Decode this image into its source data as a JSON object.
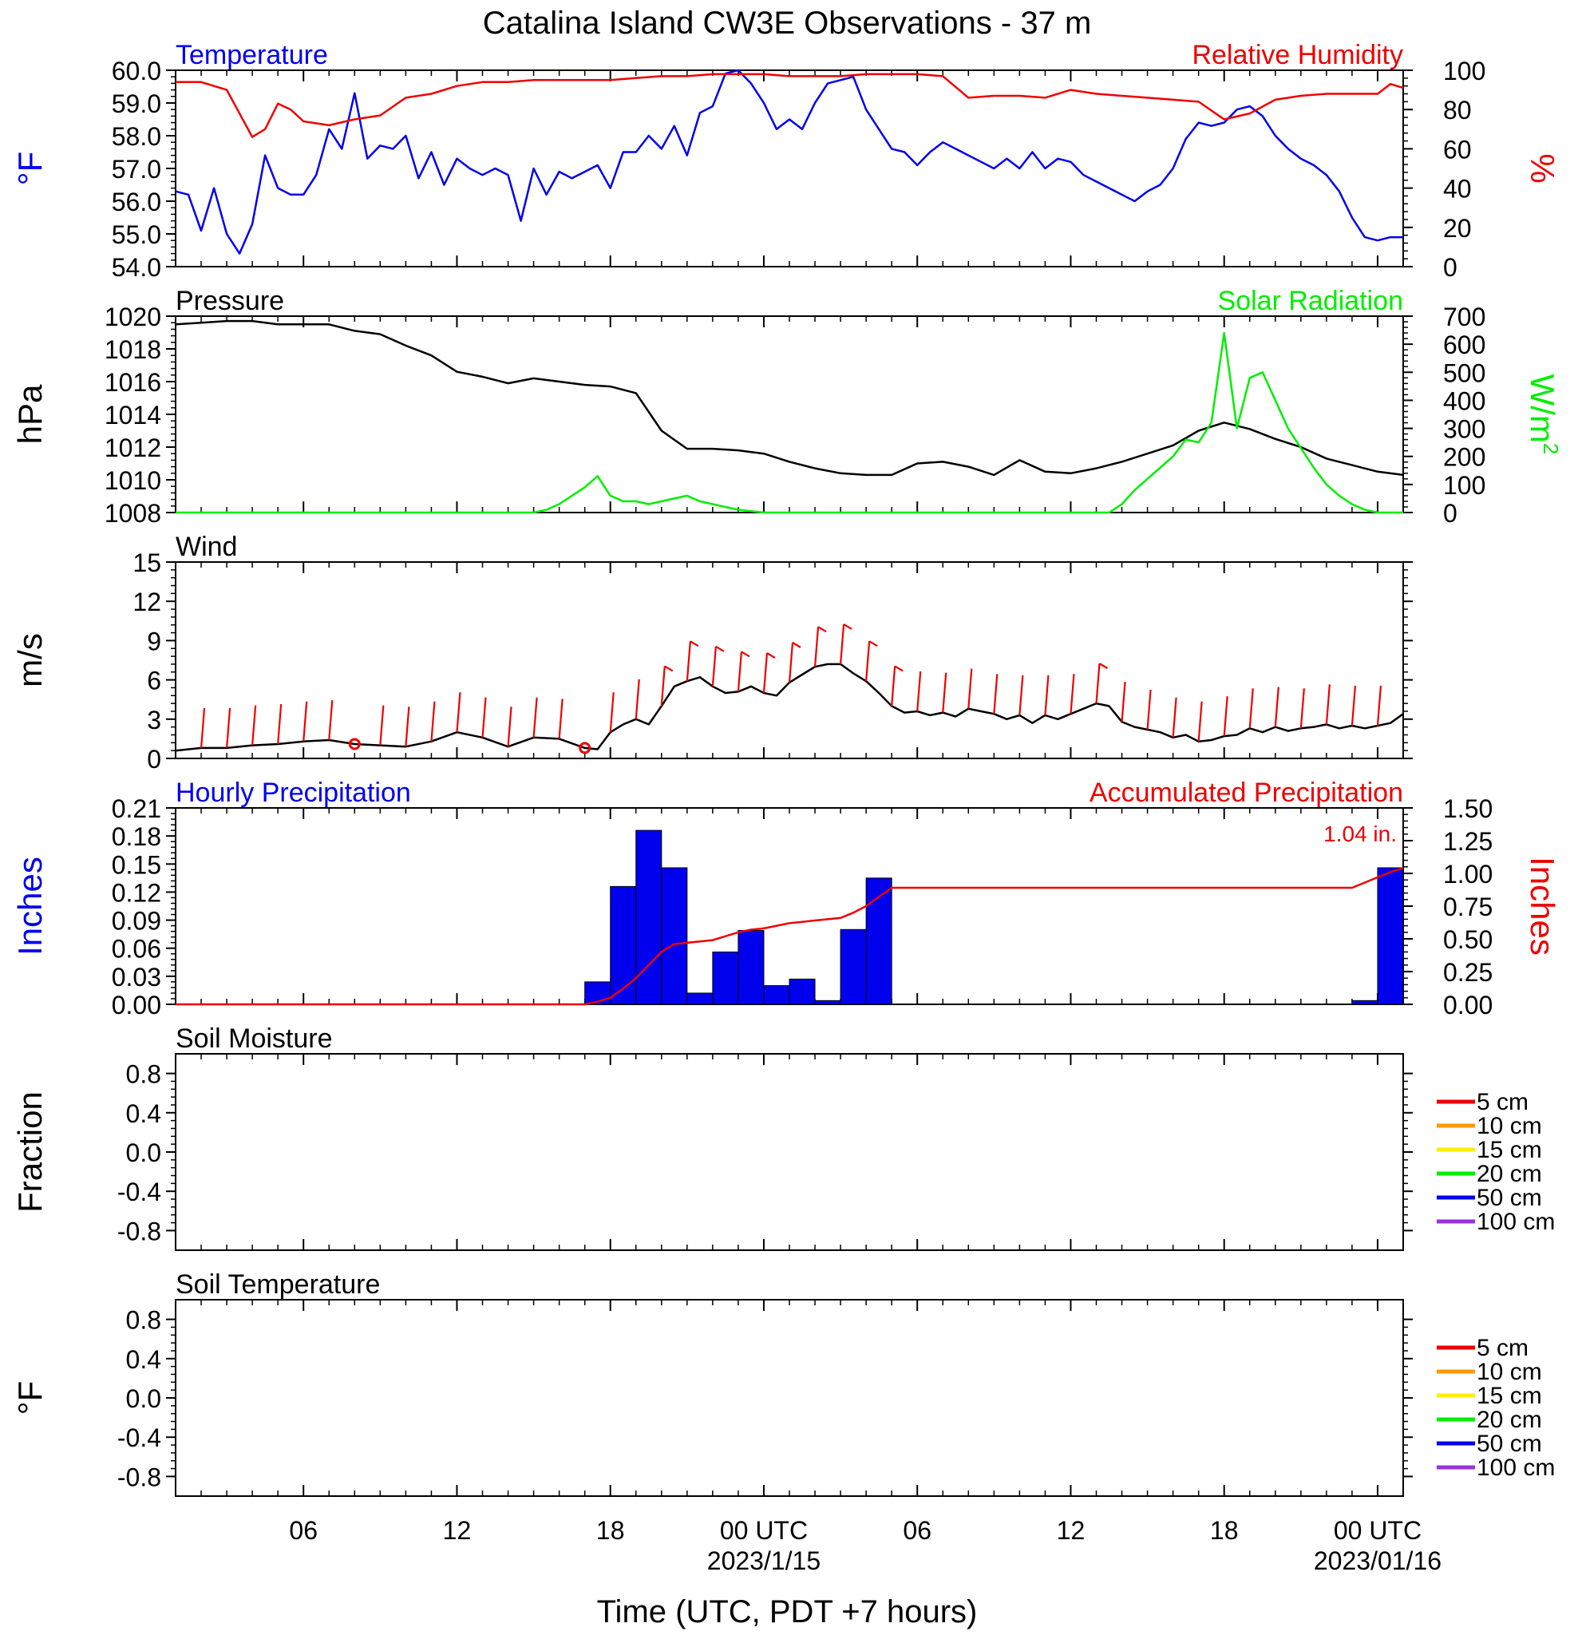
{
  "page": {
    "title": "Catalina Island CW3E Observations - 37 m",
    "xlabel": "Time (UTC, PDT +7 hours)",
    "x_ticks": [
      {
        "hour": 6,
        "label": "06",
        "date": ""
      },
      {
        "hour": 12,
        "label": "12",
        "date": ""
      },
      {
        "hour": 18,
        "label": "18",
        "date": ""
      },
      {
        "hour": 24,
        "label": "00 UTC",
        "date": "2023/1/15"
      },
      {
        "hour": 30,
        "label": "06",
        "date": ""
      },
      {
        "hour": 36,
        "label": "12",
        "date": ""
      },
      {
        "hour": 42,
        "label": "18",
        "date": ""
      },
      {
        "hour": 48,
        "label": "00 UTC",
        "date": "2023/01/16"
      }
    ],
    "x_range_hours": [
      1,
      49
    ]
  },
  "chart_data": [
    {
      "id": "temp_rh",
      "type": "line",
      "title_left": "Temperature",
      "title_right": "Relative Humidity",
      "ylabel_left": "°F",
      "ylabel_right": "%",
      "ylim_left": [
        54.0,
        60.0
      ],
      "yticks_left": [
        "54.0",
        "55.0",
        "56.0",
        "57.0",
        "58.0",
        "59.0",
        "60.0"
      ],
      "ylim_right": [
        0,
        100
      ],
      "yticks_right": [
        "0",
        "20",
        "40",
        "60",
        "80",
        "100"
      ],
      "series": [
        {
          "name": "Temperature",
          "axis": "left",
          "color": "#0000ee",
          "x": [
            1,
            1.5,
            2,
            2.5,
            3,
            3.5,
            4,
            4.5,
            5,
            5.5,
            6,
            6.5,
            7,
            7.5,
            8,
            8.5,
            9,
            9.5,
            10,
            10.5,
            11,
            11.5,
            12,
            12.5,
            13,
            13.5,
            14,
            14.5,
            15,
            15.5,
            16,
            16.5,
            17,
            17.5,
            18,
            18.5,
            19,
            19.5,
            20,
            20.5,
            21,
            21.5,
            22,
            22.5,
            23,
            23.5,
            24,
            24.5,
            25,
            25.5,
            26,
            26.5,
            27,
            27.5,
            28,
            28.5,
            29,
            29.5,
            30,
            30.5,
            31,
            31.5,
            32,
            32.5,
            33,
            33.5,
            34,
            34.5,
            35,
            35.5,
            36,
            36.5,
            37,
            37.5,
            38,
            38.5,
            39,
            39.5,
            40,
            40.5,
            41,
            41.5,
            42,
            42.5,
            43,
            43.5,
            44,
            44.5,
            45,
            45.5,
            46,
            46.5,
            47,
            47.5,
            48,
            48.5,
            49
          ],
          "values": [
            56.3,
            56.2,
            55.1,
            56.4,
            55.0,
            54.4,
            55.3,
            57.4,
            56.4,
            56.2,
            56.2,
            56.8,
            58.2,
            57.6,
            59.3,
            57.3,
            57.7,
            57.6,
            58.0,
            56.7,
            57.5,
            56.5,
            57.3,
            57.0,
            56.8,
            57.0,
            56.8,
            55.4,
            57.0,
            56.2,
            56.9,
            56.7,
            56.9,
            57.1,
            56.4,
            57.5,
            57.5,
            58.0,
            57.6,
            58.3,
            57.4,
            58.7,
            58.9,
            59.9,
            60.0,
            59.6,
            59.0,
            58.2,
            58.5,
            58.2,
            59.0,
            59.6,
            59.7,
            59.8,
            58.8,
            58.2,
            57.6,
            57.5,
            57.1,
            57.5,
            57.8,
            57.6,
            57.4,
            57.2,
            57.0,
            57.3,
            57.0,
            57.5,
            57.0,
            57.3,
            57.2,
            56.8,
            56.6,
            56.4,
            56.2,
            56.0,
            56.3,
            56.5,
            57.0,
            57.9,
            58.4,
            58.3,
            58.4,
            58.8,
            58.9,
            58.6,
            58.0,
            57.6,
            57.3,
            57.1,
            56.8,
            56.3,
            55.5,
            54.9,
            54.8,
            54.9,
            54.9
          ]
        },
        {
          "name": "Relative Humidity",
          "axis": "right",
          "color": "#ee0000",
          "x": [
            1,
            2,
            3,
            4,
            4.5,
            5,
            5.5,
            6,
            7,
            8,
            9,
            10,
            11,
            12,
            13,
            14,
            15,
            16,
            17,
            18,
            19,
            20,
            21,
            22,
            23,
            24,
            25,
            26,
            27,
            28,
            29,
            30,
            31,
            32,
            33,
            34,
            35,
            36,
            37,
            38,
            39,
            40,
            41,
            42,
            43,
            44,
            45,
            46,
            47,
            48,
            48.5,
            49
          ],
          "values": [
            94,
            94,
            90,
            66,
            70,
            83,
            80,
            74,
            72,
            75,
            77,
            86,
            88,
            92,
            94,
            94,
            95,
            95,
            95,
            95,
            96,
            97,
            97,
            98,
            98,
            98,
            97,
            97,
            97,
            98,
            98,
            98,
            97,
            86,
            87,
            87,
            86,
            90,
            88,
            87,
            86,
            85,
            84,
            75,
            78,
            85,
            87,
            88,
            88,
            88,
            93,
            91
          ]
        }
      ]
    },
    {
      "id": "pressure_solar",
      "type": "line",
      "title_left": "Pressure",
      "title_right": "Solar Radiation",
      "ylabel_left": "hPa",
      "ylabel_right": "W/m",
      "ylabel_right_sup": "2",
      "ylim_left": [
        1008,
        1020
      ],
      "yticks_left": [
        "1008",
        "1010",
        "1012",
        "1014",
        "1016",
        "1018",
        "1020"
      ],
      "ylim_right": [
        0,
        700
      ],
      "yticks_right": [
        "0",
        "100",
        "200",
        "300",
        "400",
        "500",
        "600",
        "700"
      ],
      "series": [
        {
          "name": "Pressure",
          "axis": "left",
          "color": "#000000",
          "x": [
            1,
            2,
            3,
            4,
            5,
            6,
            7,
            8,
            9,
            10,
            11,
            12,
            13,
            14,
            15,
            16,
            17,
            18,
            19,
            20,
            21,
            22,
            23,
            24,
            25,
            26,
            27,
            28,
            29,
            30,
            31,
            32,
            33,
            34,
            35,
            36,
            37,
            38,
            39,
            40,
            41,
            42,
            43,
            44,
            45,
            46,
            47,
            48,
            49
          ],
          "values": [
            1019.5,
            1019.6,
            1019.7,
            1019.7,
            1019.5,
            1019.5,
            1019.5,
            1019.1,
            1018.9,
            1018.2,
            1017.6,
            1016.6,
            1016.3,
            1015.9,
            1016.2,
            1016.0,
            1015.8,
            1015.7,
            1015.3,
            1013.0,
            1011.9,
            1011.9,
            1011.8,
            1011.6,
            1011.1,
            1010.7,
            1010.4,
            1010.3,
            1010.3,
            1011.0,
            1011.1,
            1010.8,
            1010.3,
            1011.2,
            1010.5,
            1010.4,
            1010.7,
            1011.1,
            1011.6,
            1012.1,
            1013.0,
            1013.5,
            1013.1,
            1012.5,
            1012.0,
            1011.3,
            1010.9,
            1010.5,
            1010.3
          ]
        },
        {
          "name": "Solar Radiation",
          "axis": "right",
          "color": "#00ee00",
          "x": [
            1,
            15,
            15.5,
            16,
            16.5,
            17,
            17.5,
            18,
            18.5,
            19,
            19.5,
            20,
            20.5,
            21,
            21.5,
            22,
            22.5,
            23,
            23.5,
            24,
            24.5,
            25,
            26,
            37.5,
            38,
            38.5,
            39,
            39.5,
            40,
            40.5,
            41,
            41.5,
            42,
            42.5,
            43,
            43.5,
            44,
            44.5,
            45,
            45.5,
            46,
            46.5,
            47,
            47.5,
            48,
            49
          ],
          "values": [
            0,
            0,
            10,
            30,
            60,
            90,
            130,
            60,
            40,
            40,
            30,
            40,
            50,
            60,
            40,
            30,
            20,
            10,
            5,
            0,
            0,
            0,
            0,
            0,
            30,
            80,
            120,
            160,
            200,
            260,
            250,
            320,
            640,
            300,
            480,
            500,
            400,
            300,
            230,
            160,
            100,
            60,
            30,
            10,
            0,
            0
          ]
        }
      ]
    },
    {
      "id": "wind",
      "type": "line",
      "title_left": "Wind",
      "ylabel_left": "m/s",
      "ylim_left": [
        0,
        15
      ],
      "yticks_left": [
        "0",
        "3",
        "6",
        "9",
        "12",
        "15"
      ],
      "series": [
        {
          "name": "Wind speed",
          "axis": "left",
          "color": "#000000",
          "x": [
            1,
            2,
            3,
            4,
            5,
            6,
            7,
            8,
            9,
            10,
            11,
            12,
            13,
            14,
            15,
            16,
            17,
            17.5,
            18,
            18.5,
            19,
            19.5,
            20,
            20.5,
            21,
            21.5,
            22,
            22.5,
            23,
            23.5,
            24,
            24.5,
            25,
            25.5,
            26,
            26.5,
            27,
            27.5,
            28,
            28.5,
            29,
            29.5,
            30,
            30.5,
            31,
            31.5,
            32,
            32.5,
            33,
            33.5,
            34,
            34.5,
            35,
            35.5,
            36,
            36.5,
            37,
            37.5,
            38,
            38.5,
            39,
            39.5,
            40,
            40.5,
            41,
            41.5,
            42,
            42.5,
            43,
            43.5,
            44,
            44.5,
            45,
            45.5,
            46,
            46.5,
            47,
            47.5,
            48,
            48.5,
            49
          ],
          "values": [
            0.6,
            0.8,
            0.8,
            1.0,
            1.1,
            1.3,
            1.4,
            1.1,
            1.0,
            0.9,
            1.3,
            2.0,
            1.6,
            0.9,
            1.6,
            1.5,
            0.8,
            0.7,
            2.0,
            2.6,
            3.0,
            2.6,
            4.0,
            5.5,
            5.9,
            6.2,
            5.5,
            5.0,
            5.1,
            5.5,
            5.0,
            4.8,
            5.8,
            6.4,
            7.0,
            7.2,
            7.2,
            6.5,
            5.9,
            5.0,
            4.0,
            3.5,
            3.6,
            3.3,
            3.5,
            3.2,
            3.8,
            3.6,
            3.4,
            3.0,
            3.3,
            2.7,
            3.3,
            3.0,
            3.4,
            3.8,
            4.2,
            4.0,
            2.8,
            2.4,
            2.2,
            2.0,
            1.6,
            1.8,
            1.3,
            1.4,
            1.7,
            1.8,
            2.3,
            2.0,
            2.4,
            2.1,
            2.3,
            2.4,
            2.6,
            2.3,
            2.5,
            2.3,
            2.5,
            2.7,
            3.4
          ]
        }
      ],
      "barbs_color": "#ee0000",
      "barb_hours": [
        2,
        3,
        4,
        5,
        6,
        7,
        9,
        10,
        11,
        12,
        13,
        14,
        15,
        16,
        18,
        19,
        20,
        21,
        22,
        23,
        24,
        25,
        26,
        27,
        28,
        29,
        30,
        31,
        32,
        33,
        34,
        35,
        36,
        37,
        38,
        39,
        40,
        41,
        42,
        43,
        44,
        45,
        46,
        47,
        48
      ],
      "calm_hours": [
        8,
        17
      ]
    },
    {
      "id": "precip",
      "type": "bar",
      "title_left": "Hourly Precipitation",
      "title_right": "Accumulated Precipitation",
      "annotation": "1.04 in.",
      "ylabel_left": "Inches",
      "ylabel_right": "Inches",
      "ylim_left": [
        0,
        0.21
      ],
      "yticks_left": [
        "0.00",
        "0.03",
        "0.06",
        "0.09",
        "0.12",
        "0.15",
        "0.18",
        "0.21"
      ],
      "ylim_right": [
        0,
        1.5
      ],
      "yticks_right": [
        "0.00",
        "0.25",
        "0.50",
        "0.75",
        "1.00",
        "1.25",
        "1.50"
      ],
      "bar_color": "#0000ee",
      "hourly": {
        "hour_start": [
          17,
          18,
          19,
          20,
          21,
          22,
          23,
          24,
          25,
          26,
          27,
          28,
          47,
          48
        ],
        "values": [
          0.024,
          0.126,
          0.186,
          0.146,
          0.012,
          0.056,
          0.079,
          0.02,
          0.027,
          0.004,
          0.08,
          0.135,
          0.004,
          0.146
        ]
      },
      "accumulated": {
        "name": "Accumulated Precipitation",
        "color": "#ee0000",
        "x": [
          1,
          17,
          17.5,
          18,
          18.5,
          19,
          19.5,
          20,
          20.5,
          21,
          21.5,
          22,
          22.5,
          23,
          23.5,
          24,
          24.5,
          25,
          25.5,
          26,
          26.5,
          27,
          27.5,
          28,
          28.5,
          29,
          46,
          47,
          47.5,
          48,
          48.5,
          49
        ],
        "values": [
          0,
          0,
          0.02,
          0.05,
          0.12,
          0.2,
          0.3,
          0.4,
          0.46,
          0.47,
          0.48,
          0.49,
          0.52,
          0.55,
          0.57,
          0.58,
          0.6,
          0.62,
          0.63,
          0.64,
          0.65,
          0.66,
          0.7,
          0.75,
          0.82,
          0.89,
          0.89,
          0.89,
          0.93,
          0.97,
          1.01,
          1.04
        ]
      }
    },
    {
      "id": "soil_moisture",
      "type": "line",
      "title_left": "Soil Moisture",
      "ylabel_left": "Fraction",
      "ylim_left": [
        -1.0,
        1.0
      ],
      "yticks_left": [
        "-0.8",
        "-0.4",
        "0.0",
        "0.4",
        "0.8"
      ],
      "legend": [
        {
          "label": "5 cm",
          "color": "#ee0000"
        },
        {
          "label": "10 cm",
          "color": "#ff9900"
        },
        {
          "label": "15 cm",
          "color": "#ffee00"
        },
        {
          "label": "20 cm",
          "color": "#00ee00"
        },
        {
          "label": "50 cm",
          "color": "#0000ee"
        },
        {
          "label": "100 cm",
          "color": "#9933dd"
        }
      ]
    },
    {
      "id": "soil_temperature",
      "type": "line",
      "title_left": "Soil Temperature",
      "ylabel_left": "°F",
      "ylim_left": [
        -1.0,
        1.0
      ],
      "yticks_left": [
        "-0.8",
        "-0.4",
        "0.0",
        "0.4",
        "0.8"
      ],
      "legend": [
        {
          "label": "5 cm",
          "color": "#ee0000"
        },
        {
          "label": "10 cm",
          "color": "#ff9900"
        },
        {
          "label": "15 cm",
          "color": "#ffee00"
        },
        {
          "label": "20 cm",
          "color": "#00ee00"
        },
        {
          "label": "50 cm",
          "color": "#0000ee"
        },
        {
          "label": "100 cm",
          "color": "#9933dd"
        }
      ]
    }
  ]
}
